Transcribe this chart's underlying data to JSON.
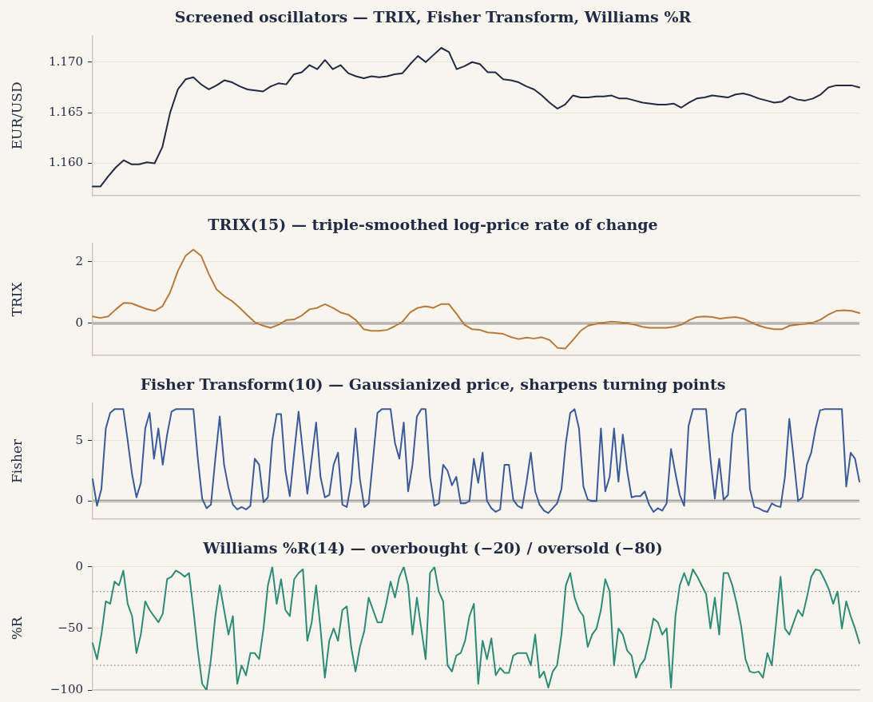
{
  "chart_data": [
    {
      "type": "line",
      "title": "Screened oscillators — TRIX, Fisher Transform, Williams %R",
      "ylabel": "EUR/USD",
      "categories": [
        null,
        null,
        null,
        null,
        null,
        null,
        null,
        null,
        null,
        null,
        null,
        null,
        null,
        null,
        null,
        null,
        null,
        null,
        null,
        null,
        null,
        null,
        null,
        null,
        null,
        null,
        null,
        null,
        null,
        null,
        null,
        null,
        null,
        null,
        null,
        null,
        null,
        null,
        null,
        null,
        null,
        null,
        null,
        null,
        null,
        null,
        null,
        null,
        null,
        null,
        null,
        null,
        null,
        null,
        null,
        null,
        null,
        null,
        null,
        null,
        null,
        null,
        null,
        null,
        null,
        null,
        null,
        null,
        null,
        null,
        null,
        null,
        null,
        null,
        null,
        null,
        null,
        null,
        null,
        null,
        null,
        null,
        null,
        null,
        null,
        null,
        null,
        null,
        null,
        null,
        null,
        null,
        null,
        null,
        null,
        null,
        null,
        null,
        null,
        null
      ],
      "series": [
        {
          "color": "#1f2a44",
          "values": [
            1.1577,
            1.1577,
            1.1587,
            1.1596,
            1.1603,
            1.1599,
            1.1599,
            1.1601,
            1.16,
            1.1616,
            1.165,
            1.1673,
            1.1683,
            1.1685,
            1.1678,
            1.1673,
            1.1677,
            1.1682,
            1.168,
            1.1676,
            1.1673,
            1.1672,
            1.1671,
            1.1676,
            1.1679,
            1.1678,
            1.1688,
            1.169,
            1.1697,
            1.1693,
            1.1702,
            1.1693,
            1.1697,
            1.1689,
            1.1686,
            1.1684,
            1.1686,
            1.1685,
            1.1686,
            1.1688,
            1.1689,
            1.1698,
            1.1706,
            1.17,
            1.1707,
            1.1714,
            1.171,
            1.1693,
            1.1696,
            1.17,
            1.1698,
            1.169,
            1.169,
            1.1683,
            1.1682,
            1.168,
            1.1676,
            1.1673,
            1.1667,
            1.166,
            1.1654,
            1.1658,
            1.1667,
            1.1665,
            1.1665,
            1.1666,
            1.1666,
            1.1667,
            1.1664,
            1.1664,
            1.1662,
            1.166,
            1.1659,
            1.1658,
            1.1658,
            1.1659,
            1.1655,
            1.166,
            1.1664,
            1.1665,
            1.1667,
            1.1666,
            1.1665,
            1.1668,
            1.1669,
            1.1667,
            1.1664,
            1.1662,
            1.166,
            1.1661,
            1.1666,
            1.1663,
            1.1662,
            1.1664,
            1.1668,
            1.1675,
            1.1677,
            1.1677,
            1.1677,
            1.1675
          ]
        }
      ],
      "ylim": [
        1.1568,
        1.1726
      ],
      "yticks": [
        {
          "value": 1.16,
          "label": "1.160"
        },
        {
          "value": 1.165,
          "label": "1.165"
        },
        {
          "value": 1.17,
          "label": "1.170"
        }
      ],
      "grid": "y",
      "tick_labels": "y"
    },
    {
      "type": "line",
      "title": "TRIX(15) — triple-smoothed log-price rate of change",
      "ylabel": "TRIX",
      "categories": [
        null,
        null,
        null,
        null,
        null,
        null,
        null,
        null,
        null,
        null,
        null,
        null,
        null,
        null,
        null,
        null,
        null,
        null,
        null,
        null,
        null,
        null,
        null,
        null,
        null,
        null,
        null,
        null,
        null,
        null,
        null,
        null,
        null,
        null,
        null,
        null,
        null,
        null,
        null,
        null,
        null,
        null,
        null,
        null,
        null,
        null,
        null,
        null,
        null,
        null,
        null,
        null,
        null,
        null,
        null,
        null,
        null,
        null,
        null,
        null,
        null,
        null,
        null,
        null,
        null,
        null,
        null,
        null,
        null,
        null,
        null,
        null,
        null,
        null,
        null,
        null,
        null,
        null,
        null,
        null,
        null,
        null,
        null,
        null,
        null,
        null,
        null,
        null,
        null,
        null,
        null,
        null,
        null,
        null,
        null,
        null,
        null,
        null,
        null,
        null
      ],
      "series": [
        {
          "color": "#b87a3a",
          "values": [
            0.22,
            0.17,
            0.22,
            0.45,
            0.66,
            0.65,
            0.55,
            0.46,
            0.4,
            0.55,
            1.0,
            1.7,
            2.2,
            2.4,
            2.2,
            1.6,
            1.1,
            0.88,
            0.72,
            0.5,
            0.25,
            0.02,
            -0.08,
            -0.15,
            -0.05,
            0.1,
            0.12,
            0.25,
            0.45,
            0.5,
            0.62,
            0.5,
            0.35,
            0.28,
            0.1,
            -0.2,
            -0.25,
            -0.25,
            -0.22,
            -0.1,
            0.05,
            0.35,
            0.5,
            0.55,
            0.5,
            0.62,
            0.62,
            0.3,
            -0.05,
            -0.2,
            -0.22,
            -0.3,
            -0.32,
            -0.35,
            -0.45,
            -0.52,
            -0.47,
            -0.5,
            -0.46,
            -0.55,
            -0.8,
            -0.83,
            -0.55,
            -0.25,
            -0.08,
            -0.02,
            0.02,
            0.05,
            0.03,
            0.0,
            -0.05,
            -0.12,
            -0.15,
            -0.15,
            -0.15,
            -0.12,
            -0.05,
            0.1,
            0.2,
            0.22,
            0.2,
            0.15,
            0.18,
            0.2,
            0.15,
            0.03,
            -0.08,
            -0.15,
            -0.2,
            -0.2,
            -0.08,
            -0.05,
            -0.02,
            0.02,
            0.12,
            0.28,
            0.4,
            0.42,
            0.4,
            0.33
          ]
        }
      ],
      "ylim": [
        -1.05,
        2.6
      ],
      "yticks": [
        0,
        2
      ],
      "grid": "y",
      "tick_labels": "y",
      "ref_lines": [
        {
          "axis": "y",
          "value": 0,
          "color": "#8a8a8a"
        }
      ]
    },
    {
      "type": "line",
      "title": "Fisher Transform(10) — Gaussianized price, sharpens turning points",
      "ylabel": "Fisher",
      "categories": [
        null,
        null,
        null,
        null,
        null,
        null,
        null,
        null,
        null,
        null,
        null,
        null,
        null,
        null,
        null,
        null,
        null,
        null,
        null,
        null,
        null,
        null,
        null,
        null,
        null,
        null,
        null,
        null,
        null,
        null,
        null,
        null,
        null,
        null,
        null,
        null,
        null,
        null,
        null,
        null,
        null,
        null,
        null,
        null,
        null,
        null,
        null,
        null,
        null,
        null,
        null,
        null,
        null,
        null,
        null,
        null,
        null,
        null,
        null,
        null,
        null,
        null,
        null,
        null,
        null,
        null,
        null,
        null,
        null,
        null,
        null,
        null,
        null,
        null,
        null,
        null,
        null,
        null,
        null,
        null,
        null,
        null,
        null,
        null,
        null,
        null,
        null,
        null,
        null,
        null,
        null,
        null,
        null,
        null,
        null,
        null,
        null,
        null,
        null,
        null,
        null,
        null,
        null,
        null,
        null,
        null,
        null,
        null,
        null,
        null,
        null,
        null,
        null,
        null,
        null,
        null,
        null,
        null,
        null,
        null,
        null,
        null,
        null,
        null,
        null,
        null,
        null,
        null,
        null,
        null,
        null,
        null,
        null,
        null,
        null,
        null,
        null,
        null,
        null,
        null,
        null,
        null,
        null,
        null,
        null,
        null,
        null,
        null,
        null,
        null,
        null,
        null,
        null,
        null,
        null,
        null,
        null,
        null,
        null,
        null,
        null,
        null,
        null,
        null,
        null,
        null,
        null,
        null,
        null,
        null,
        null,
        null,
        null,
        null,
        null,
        null
      ],
      "series": [
        {
          "color": "#3a5a9a",
          "values": [
            1.8,
            -0.4,
            1.0,
            6.0,
            7.3,
            7.6,
            7.6,
            7.6,
            5.0,
            2.2,
            0.3,
            1.5,
            6.0,
            7.3,
            3.5,
            6.0,
            3.0,
            5.5,
            7.4,
            7.6,
            7.6,
            7.6,
            7.6,
            7.6,
            3.5,
            0.2,
            -0.6,
            -0.3,
            3.5,
            7.0,
            3.0,
            1.1,
            -0.3,
            -0.7,
            -0.5,
            -0.7,
            -0.4,
            3.5,
            3.0,
            -0.1,
            0.3,
            5.0,
            7.2,
            7.2,
            2.5,
            0.4,
            4.0,
            7.4,
            4.0,
            0.6,
            3.5,
            6.5,
            2.0,
            0.3,
            0.5,
            3.0,
            4.0,
            -0.3,
            -0.5,
            1.5,
            6.0,
            1.8,
            -0.5,
            -0.2,
            3.5,
            7.3,
            7.6,
            7.6,
            7.6,
            4.8,
            3.5,
            6.5,
            0.8,
            3.0,
            7.0,
            7.6,
            7.6,
            2.0,
            -0.4,
            -0.2,
            3.0,
            2.5,
            1.3,
            2.0,
            -0.2,
            -0.2,
            0.0,
            3.5,
            1.5,
            4.0,
            0.0,
            -0.6,
            -0.9,
            -0.7,
            3.0,
            3.0,
            0.1,
            -0.4,
            -0.6,
            1.5,
            4.0,
            0.8,
            -0.3,
            -0.8,
            -1.0,
            -0.6,
            -0.2,
            1.0,
            4.8,
            7.3,
            7.6,
            6.0,
            1.2,
            0.1,
            0.0,
            0.0,
            6.0,
            0.8,
            2.0,
            6.0,
            1.6,
            5.5,
            2.5,
            0.3,
            0.4,
            0.4,
            0.8,
            -0.3,
            -0.9,
            -0.6,
            -0.8,
            -0.2,
            4.3,
            2.3,
            0.5,
            -0.4,
            6.2,
            7.6,
            7.6,
            7.6,
            7.6,
            3.5,
            0.2,
            3.5,
            0.1,
            0.5,
            5.5,
            7.3,
            7.6,
            7.6,
            1.0,
            -0.5,
            -0.6,
            -0.8,
            -0.9,
            -0.2,
            -0.4,
            -0.5,
            2.0,
            6.8,
            3.5,
            0.0,
            0.3,
            3.0,
            4.0,
            6.0,
            7.5,
            7.6,
            7.6,
            7.6,
            7.6,
            7.6,
            1.2,
            4.0,
            3.5,
            1.6
          ]
        }
      ],
      "ylim": [
        -1.5,
        8.1
      ],
      "yticks": [
        0,
        5
      ],
      "grid": "y",
      "tick_labels": "y",
      "ref_lines": [
        {
          "axis": "y",
          "value": 0,
          "color": "#8a8a8a"
        }
      ]
    },
    {
      "type": "line",
      "title": "Williams %R(14) — overbought (−20) / oversold (−80)",
      "ylabel": "%R",
      "categories": [
        null,
        null,
        null,
        null,
        null,
        null,
        null,
        null,
        null,
        null,
        null,
        null,
        null,
        null,
        null,
        null,
        null,
        null,
        null,
        null,
        null,
        null,
        null,
        null,
        null,
        null,
        null,
        null,
        null,
        null,
        null,
        null,
        null,
        null,
        null,
        null,
        null,
        null,
        null,
        null,
        null,
        null,
        null,
        null,
        null,
        null,
        null,
        null,
        null,
        null,
        null,
        null,
        null,
        null,
        null,
        null,
        null,
        null,
        null,
        null,
        null,
        null,
        null,
        null,
        null,
        null,
        null,
        null,
        null,
        null,
        null,
        null,
        null,
        null,
        null,
        null,
        null,
        null,
        null,
        null,
        null,
        null,
        null,
        null,
        null,
        null,
        null,
        null,
        null,
        null,
        null,
        null,
        null,
        null,
        null,
        null,
        null,
        null,
        null,
        null,
        null,
        null,
        null,
        null,
        null,
        null,
        null,
        null,
        null,
        null,
        null,
        null,
        null,
        null,
        null,
        null,
        null,
        null,
        null,
        null,
        null,
        null,
        null,
        null,
        null,
        null,
        null,
        null,
        null,
        null,
        null,
        null,
        null,
        null,
        null,
        null,
        null,
        null,
        null,
        null,
        null,
        null,
        null,
        null,
        null,
        null,
        null,
        null,
        null,
        null,
        null,
        null,
        null,
        null,
        null,
        null,
        null,
        null,
        null,
        null,
        null,
        null,
        null,
        null,
        null,
        null,
        null,
        null,
        null,
        null,
        null,
        null,
        null,
        null,
        null,
        null
      ],
      "series": [
        {
          "color": "#2e8b78",
          "values": [
            -62,
            -75,
            -55,
            -28,
            -30,
            -12,
            -15,
            -3,
            -30,
            -40,
            -70,
            -55,
            -28,
            -35,
            -40,
            -45,
            -38,
            -10,
            -8,
            -3,
            -5,
            -8,
            -5,
            -35,
            -68,
            -95,
            -100,
            -75,
            -40,
            -15,
            -35,
            -55,
            -40,
            -95,
            -80,
            -88,
            -70,
            -70,
            -75,
            -50,
            -15,
            0,
            -30,
            -10,
            -35,
            -40,
            -10,
            -5,
            -2,
            -60,
            -45,
            -15,
            -50,
            -90,
            -60,
            -50,
            -60,
            -35,
            -32,
            -65,
            -85,
            -65,
            -52,
            -25,
            -35,
            -45,
            -45,
            -30,
            -12,
            -25,
            -8,
            0,
            -15,
            -55,
            -25,
            -50,
            -75,
            -5,
            0,
            -20,
            -28,
            -80,
            -85,
            -72,
            -70,
            -60,
            -40,
            -30,
            -95,
            -60,
            -75,
            -58,
            -88,
            -82,
            -86,
            -86,
            -72,
            -70,
            -70,
            -70,
            -80,
            -55,
            -90,
            -85,
            -98,
            -85,
            -80,
            -55,
            -15,
            -5,
            -25,
            -35,
            -40,
            -65,
            -55,
            -50,
            -35,
            -10,
            -20,
            -80,
            -50,
            -55,
            -68,
            -72,
            -90,
            -80,
            -75,
            -60,
            -42,
            -45,
            -55,
            -50,
            -98,
            -40,
            -15,
            -5,
            -15,
            -2,
            -8,
            -15,
            -22,
            -50,
            -25,
            -55,
            -5,
            -5,
            -15,
            -30,
            -48,
            -75,
            -85,
            -86,
            -85,
            -90,
            -70,
            -80,
            -45,
            -8,
            -50,
            -55,
            -45,
            -35,
            -40,
            -25,
            -8,
            -2,
            -3,
            -10,
            -18,
            -30,
            -20,
            -50,
            -28,
            -40,
            -50,
            -62
          ]
        }
      ],
      "ylim": [
        -100,
        0
      ],
      "yticks": [
        {
          "value": -100,
          "label": "−100"
        },
        {
          "value": -50,
          "label": "−50"
        },
        {
          "value": 0,
          "label": "0"
        }
      ],
      "grid": "y",
      "tick_labels": "y",
      "ref_lines": [
        {
          "axis": "y",
          "value": -20,
          "color": "#8a8a8a",
          "line_style": "dotted"
        },
        {
          "axis": "y",
          "value": -80,
          "color": "#8a8a8a",
          "line_style": "dotted"
        }
      ]
    }
  ]
}
